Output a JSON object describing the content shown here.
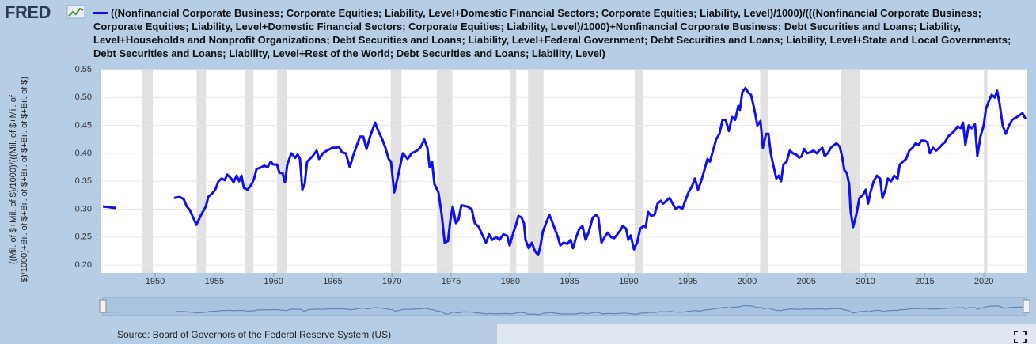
{
  "header": {
    "logo": "FRED"
  },
  "footer": {
    "source": "Source: Board of Governors of the Federal Reserve System (US)"
  },
  "chart_data": {
    "type": "line",
    "y_label": "((Mil. of $+Mil. of $)/1000)/(((Mil. of $+Mil. of $)/1000)+Bil. of $+Bil. of $+Bil. of $+Bil. of $+Bil. of $)",
    "xlim": [
      1945.45,
      2023.6
    ],
    "xticks": [
      1950,
      1955,
      1960,
      1965,
      1970,
      1975,
      1980,
      1985,
      1990,
      1995,
      2000,
      2005,
      2010,
      2015,
      2020
    ],
    "ylim": [
      0.186,
      0.55
    ],
    "yticks": [
      {
        "value": 0.2,
        "label": "0.20"
      },
      0.25,
      {
        "value": 0.3,
        "label": "0.30"
      },
      0.35,
      {
        "value": 0.4,
        "label": "0.40"
      },
      0.45,
      {
        "value": 0.5,
        "label": "0.50"
      },
      0.55
    ],
    "grid": true,
    "recession_color": "#e1e1e1",
    "recessions": [
      [
        1948.9,
        1949.8
      ],
      [
        1953.5,
        1954.3
      ],
      [
        1957.6,
        1958.3
      ],
      [
        1960.3,
        1961.1
      ],
      [
        1969.9,
        1970.8
      ],
      [
        1973.8,
        1975.1
      ],
      [
        1980.0,
        1980.5
      ],
      [
        1981.5,
        1982.8
      ],
      [
        1990.5,
        1991.2
      ],
      [
        2001.1,
        2001.8
      ],
      [
        2007.9,
        2009.5
      ],
      [
        2020.0,
        2020.3
      ]
    ],
    "x": [
      1945.59,
      1946.72,
      1949.0,
      1951.6,
      1952.07,
      1952.41,
      1952.67,
      1952.94,
      1953.21,
      1953.48,
      1953.88,
      1954.28,
      1954.48,
      1954.81,
      1955.08,
      1955.35,
      1955.61,
      1955.88,
      1956.08,
      1956.42,
      1956.62,
      1956.88,
      1957.09,
      1957.29,
      1957.49,
      1957.82,
      1958.15,
      1958.36,
      1958.56,
      1958.96,
      1959.22,
      1959.49,
      1959.76,
      1959.96,
      1960.29,
      1960.49,
      1960.76,
      1960.96,
      1961.16,
      1961.5,
      1961.83,
      1962.03,
      1962.23,
      1962.43,
      1962.63,
      1962.83,
      1963.3,
      1963.64,
      1963.84,
      1964.17,
      1964.5,
      1964.97,
      1965.31,
      1965.51,
      1965.77,
      1966.11,
      1966.44,
      1966.71,
      1967.04,
      1967.31,
      1967.58,
      1967.85,
      1968.18,
      1968.58,
      1968.85,
      1969.18,
      1969.45,
      1969.72,
      1969.92,
      1970.19,
      1970.52,
      1970.92,
      1971.32,
      1971.66,
      1972.12,
      1972.39,
      1972.73,
      1972.99,
      1973.19,
      1973.39,
      1973.59,
      1973.93,
      1974.2,
      1974.46,
      1974.73,
      1974.93,
      1975.13,
      1975.4,
      1975.6,
      1975.87,
      1976.34,
      1976.74,
      1977.0,
      1977.34,
      1977.61,
      1977.94,
      1978.21,
      1978.47,
      1978.81,
      1979.08,
      1979.41,
      1979.74,
      1979.94,
      1980.28,
      1980.48,
      1980.68,
      1980.95,
      1981.15,
      1981.28,
      1981.55,
      1981.82,
      1982.08,
      1982.35,
      1982.55,
      1982.75,
      1983.02,
      1983.29,
      1983.49,
      1983.75,
      1984.02,
      1984.22,
      1984.49,
      1984.82,
      1985.09,
      1985.29,
      1985.56,
      1985.83,
      1986.09,
      1986.36,
      1986.63,
      1986.96,
      1987.23,
      1987.43,
      1987.7,
      1987.97,
      1988.23,
      1988.5,
      1988.77,
      1989.03,
      1989.3,
      1989.5,
      1989.77,
      1989.97,
      1990.17,
      1990.44,
      1990.71,
      1990.97,
      1991.24,
      1991.44,
      1991.64,
      1991.91,
      1992.18,
      1992.44,
      1992.71,
      1992.91,
      1993.18,
      1993.45,
      1993.71,
      1993.98,
      1994.25,
      1994.52,
      1994.78,
      1995.05,
      1995.32,
      1995.59,
      1995.85,
      1996.12,
      1996.39,
      1996.65,
      1996.86,
      1997.12,
      1997.39,
      1997.66,
      1997.93,
      1998.19,
      1998.46,
      1998.73,
      1998.99,
      1999.26,
      1999.39,
      1999.6,
      1999.86,
      2000.13,
      2000.33,
      2000.6,
      2000.87,
      2001.13,
      2001.33,
      2001.6,
      2001.8,
      2002.0,
      2002.2,
      2002.47,
      2002.67,
      2002.87,
      2003.07,
      2003.34,
      2003.61,
      2003.87,
      2004.14,
      2004.41,
      2004.61,
      2004.81,
      2005.08,
      2005.34,
      2005.61,
      2005.88,
      2006.08,
      2006.35,
      2006.55,
      2006.81,
      2007.08,
      2007.35,
      2007.55,
      2007.82,
      2008.02,
      2008.22,
      2008.42,
      2008.62,
      2008.75,
      2008.95,
      2009.22,
      2009.49,
      2009.76,
      2010.02,
      2010.22,
      2010.42,
      2010.69,
      2010.96,
      2011.23,
      2011.43,
      2011.69,
      2011.89,
      2012.16,
      2012.43,
      2012.7,
      2012.9,
      2013.16,
      2013.43,
      2013.7,
      2013.97,
      2014.23,
      2014.5,
      2014.7,
      2014.97,
      2015.24,
      2015.44,
      2015.7,
      2015.97,
      2016.24,
      2016.44,
      2016.71,
      2016.97,
      2017.24,
      2017.51,
      2017.78,
      2018.04,
      2018.24,
      2018.44,
      2018.71,
      2018.98,
      2019.25,
      2019.45,
      2019.71,
      2019.98,
      2020.18,
      2020.45,
      2020.65,
      2020.92,
      2021.12,
      2021.32,
      2021.59,
      2021.85,
      2022.12,
      2022.39,
      2022.79,
      2023.26,
      2023.52
    ],
    "series": [
      {
        "name": "((Nonfinancial Corporate Business; Corporate Equities; Liability, Level+Domestic Financial Sectors; Corporate Equities; Liability, Level)/1000)/(((Nonfinancial Corporate Business; Corporate Equities; Liability, Level+Domestic Financial Sectors; Corporate Equities; Liability, Level)/1000)+Nonfinancial Corporate Business; Debt Securities and Loans; Liability, Level+Households and Nonprofit Organizations; Debt Securities and Loans; Liability, Level+Federal Government; Debt Securities and Loans; Liability, Level+State and Local Governments; Debt Securities and Loans; Liability, Level+Rest of the World; Debt Securities and Loans; Liability, Level)",
        "color": "#1010ee",
        "values": [
          0.305,
          0.302,
          null,
          0.32,
          0.322,
          0.318,
          0.305,
          0.298,
          0.285,
          0.272,
          0.29,
          0.305,
          0.322,
          0.328,
          0.335,
          0.35,
          0.355,
          0.352,
          0.362,
          0.355,
          0.348,
          0.36,
          0.35,
          0.36,
          0.338,
          0.335,
          0.345,
          0.355,
          0.372,
          0.375,
          0.378,
          0.375,
          0.385,
          0.38,
          0.38,
          0.365,
          0.365,
          0.348,
          0.38,
          0.4,
          0.392,
          0.398,
          0.39,
          0.335,
          0.345,
          0.385,
          0.395,
          0.405,
          0.39,
          0.4,
          0.405,
          0.41,
          0.41,
          0.412,
          0.402,
          0.4,
          0.375,
          0.395,
          0.415,
          0.43,
          0.43,
          0.408,
          0.432,
          0.455,
          0.44,
          0.425,
          0.41,
          0.39,
          0.385,
          0.33,
          0.36,
          0.4,
          0.39,
          0.4,
          0.405,
          0.41,
          0.425,
          0.41,
          0.375,
          0.385,
          0.345,
          0.33,
          0.29,
          0.24,
          0.243,
          0.28,
          0.305,
          0.275,
          0.28,
          0.307,
          0.305,
          0.3,
          0.275,
          0.268,
          0.255,
          0.24,
          0.255,
          0.245,
          0.25,
          0.245,
          0.255,
          0.252,
          0.235,
          0.26,
          0.272,
          0.288,
          0.285,
          0.275,
          0.245,
          0.23,
          0.24,
          0.225,
          0.218,
          0.235,
          0.26,
          0.275,
          0.29,
          0.28,
          0.265,
          0.25,
          0.235,
          0.24,
          0.238,
          0.245,
          0.23,
          0.25,
          0.265,
          0.27,
          0.245,
          0.26,
          0.285,
          0.29,
          0.285,
          0.24,
          0.25,
          0.258,
          0.25,
          0.248,
          0.255,
          0.262,
          0.27,
          0.265,
          0.245,
          0.253,
          0.228,
          0.24,
          0.265,
          0.27,
          0.268,
          0.295,
          0.288,
          0.29,
          0.31,
          0.315,
          0.31,
          0.315,
          0.32,
          0.31,
          0.3,
          0.305,
          0.3,
          0.315,
          0.33,
          0.34,
          0.355,
          0.335,
          0.35,
          0.37,
          0.39,
          0.385,
          0.405,
          0.425,
          0.435,
          0.46,
          0.46,
          0.44,
          0.465,
          0.46,
          0.485,
          0.478,
          0.51,
          0.517,
          0.508,
          0.505,
          0.48,
          0.45,
          0.458,
          0.41,
          0.435,
          0.435,
          0.4,
          0.38,
          0.355,
          0.36,
          0.35,
          0.38,
          0.385,
          0.405,
          0.4,
          0.398,
          0.392,
          0.395,
          0.408,
          0.4,
          0.402,
          0.405,
          0.4,
          0.405,
          0.41,
          0.395,
          0.4,
          0.41,
          0.415,
          0.418,
          0.412,
          0.395,
          0.37,
          0.365,
          0.345,
          0.295,
          0.268,
          0.29,
          0.32,
          0.325,
          0.335,
          0.31,
          0.33,
          0.35,
          0.36,
          0.355,
          0.32,
          0.335,
          0.355,
          0.35,
          0.36,
          0.355,
          0.38,
          0.385,
          0.39,
          0.405,
          0.41,
          0.418,
          0.415,
          0.423,
          0.423,
          0.42,
          0.4,
          0.41,
          0.405,
          0.41,
          0.415,
          0.42,
          0.43,
          0.435,
          0.44,
          0.448,
          0.445,
          0.455,
          0.415,
          0.45,
          0.445,
          0.452,
          0.395,
          0.43,
          0.45,
          0.48,
          0.495,
          0.505,
          0.5,
          0.512,
          0.49,
          0.45,
          0.435,
          0.45,
          0.46,
          0.465,
          0.472,
          0.462
        ]
      }
    ]
  }
}
